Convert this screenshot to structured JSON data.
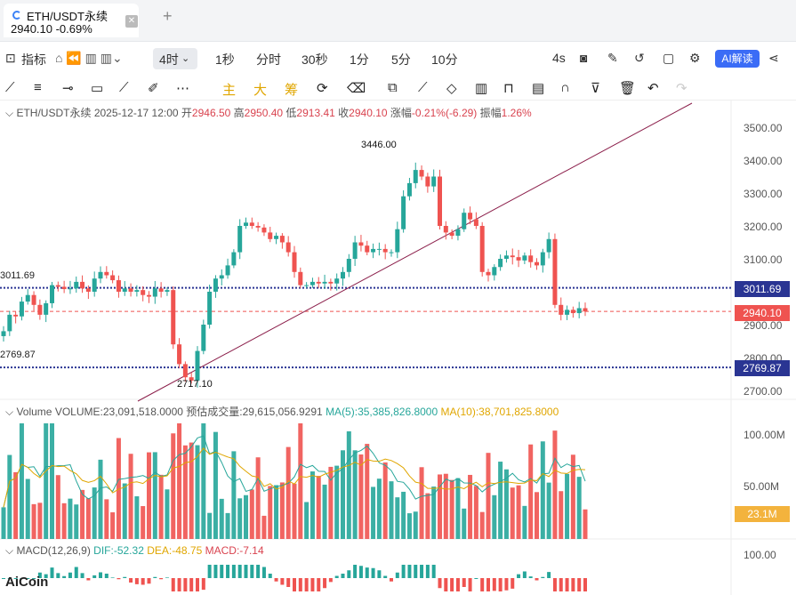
{
  "tab": {
    "title": "ETH/USDT永续",
    "price_change": "2940.10  -0.69%",
    "close": "✕",
    "new": "+"
  },
  "toolbar": {
    "indicators": "指标",
    "timeframes": [
      "4时",
      "1秒",
      "分时",
      "30秒",
      "1分",
      "5分",
      "10分"
    ],
    "refresh": "4s",
    "ai": "AI解读"
  },
  "drawing_tools": {
    "gold": [
      "主",
      "大",
      "筹"
    ]
  },
  "ohlc": {
    "symbol": "ETH/USDT永续",
    "time": "2025-12-17 12:00",
    "open_label": "开",
    "open": "2946.50",
    "high_label": "高",
    "high": "2950.40",
    "low_label": "低",
    "low": "2913.41",
    "close_label": "收",
    "close": "2940.10",
    "chg_label": "涨幅",
    "chg": "-0.21%(-6.29)",
    "amp_label": "振幅",
    "amp": "1.26%"
  },
  "volume": {
    "label": "Volume",
    "vol": "VOLUME:23,091,518.0000",
    "est": "预估成交量:29,615,056.9291",
    "ma5": "MA(5):35,385,826.8000",
    "ma10": "MA(10):38,701,825.8000",
    "tag": "23.1M"
  },
  "macd": {
    "label": "MACD(12,26,9)",
    "dif": "DIF:-52.32",
    "dea": "DEA:-48.75",
    "macd": "MACD:-7.14"
  },
  "price_axis": [
    "3500.00",
    "3400.00",
    "3300.00",
    "3200.00",
    "3100.00",
    "3000.00",
    "2900.00",
    "2800.00",
    "2700.00"
  ],
  "vol_axis": [
    "100.00M",
    "50.00M"
  ],
  "macd_axis": [
    "100.00"
  ],
  "levels": {
    "upper": "3011.69",
    "lower": "2769.87",
    "current": "2940.10"
  },
  "annotations": {
    "high": "3446.00",
    "low": "2717.10"
  },
  "logo": "AiCoin",
  "colors": {
    "up": "#26a69a",
    "down": "#ef5350",
    "level": "#2a3593",
    "accent": "#3b6cf6"
  },
  "chart_data": {
    "type": "candlestick",
    "closes": [
      2880,
      2930,
      2925,
      2970,
      2990,
      2960,
      2930,
      2965,
      3020,
      3015,
      3008,
      3010,
      3030,
      3010,
      3000,
      3040,
      3060,
      3050,
      3035,
      3000,
      3010,
      3000,
      3005,
      2990,
      2985,
      3010,
      3000,
      3005,
      2840,
      2780,
      2740,
      2730,
      2820,
      2900,
      3000,
      3040,
      3050,
      3080,
      3120,
      3200,
      3210,
      3200,
      3195,
      3180,
      3160,
      3170,
      3150,
      3120,
      3060,
      3020,
      3020,
      3030,
      3025,
      3030,
      3025,
      3040,
      3060,
      3100,
      3150,
      3140,
      3120,
      3130,
      3130,
      3120,
      3120,
      3190,
      3290,
      3330,
      3370,
      3350,
      3320,
      3350,
      3200,
      3180,
      3170,
      3190,
      3240,
      3220,
      3200,
      3060,
      3050,
      3075,
      3100,
      3110,
      3105,
      3095,
      3110,
      3090,
      3080,
      3120,
      3160,
      2960,
      2930,
      2945,
      2935,
      2950,
      2940
    ]
  }
}
